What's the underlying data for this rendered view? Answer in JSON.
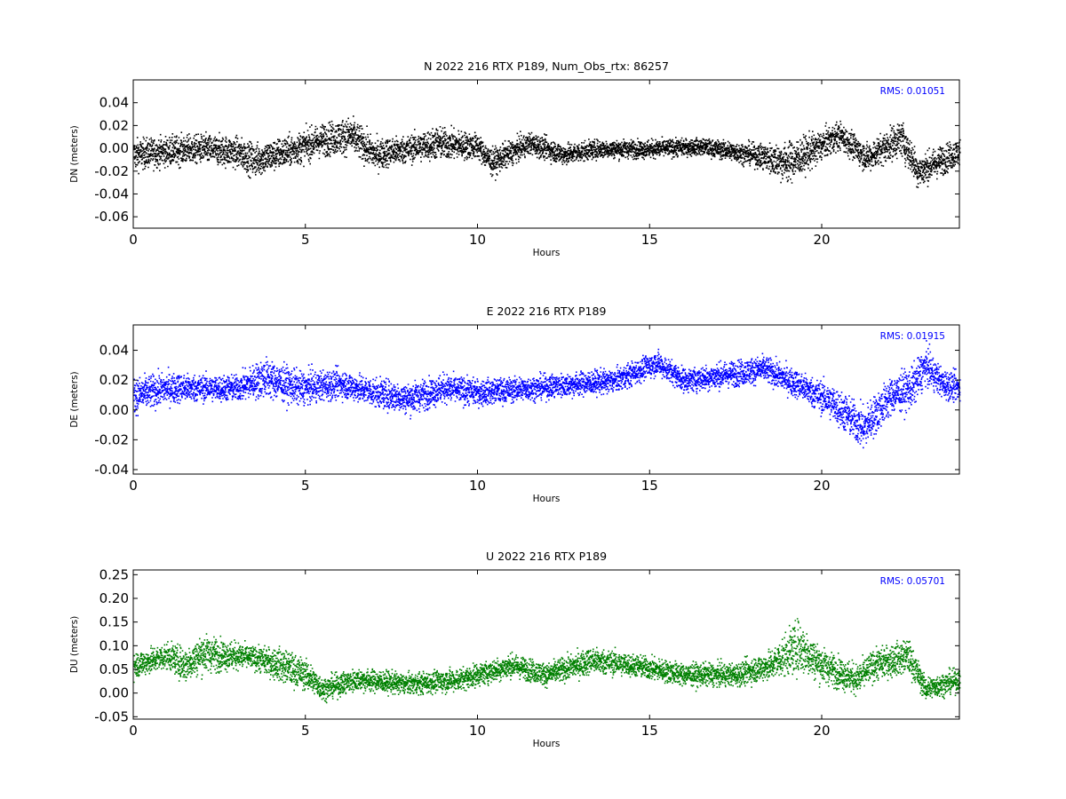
{
  "chart_data": [
    {
      "type": "scatter",
      "title": "N 2022 216 RTX  P189, Num_Obs_rtx: 86257",
      "xlabel": "Hours",
      "ylabel": "DN (meters)",
      "xlim": [
        0,
        24
      ],
      "ylim": [
        -0.07,
        0.06
      ],
      "xticks": [
        0,
        5,
        10,
        15,
        20
      ],
      "yticks": [
        -0.06,
        -0.04,
        -0.02,
        0.0,
        0.02,
        0.04
      ],
      "ytick_decimals": 2,
      "grid": false,
      "color": "#000000",
      "rms_label": "RMS:  0.01051",
      "rms_color": "#0000ff",
      "series": [
        {
          "band": [
            {
              "x": 0.0,
              "center": -0.005,
              "spread": 0.017
            },
            {
              "x": 1.0,
              "center": -0.002,
              "spread": 0.016
            },
            {
              "x": 2.0,
              "center": 0.0,
              "spread": 0.016
            },
            {
              "x": 3.0,
              "center": -0.003,
              "spread": 0.017
            },
            {
              "x": 3.5,
              "center": -0.01,
              "spread": 0.018
            },
            {
              "x": 4.5,
              "center": -0.002,
              "spread": 0.017
            },
            {
              "x": 5.5,
              "center": 0.008,
              "spread": 0.018
            },
            {
              "x": 6.3,
              "center": 0.012,
              "spread": 0.02
            },
            {
              "x": 7.0,
              "center": -0.005,
              "spread": 0.017
            },
            {
              "x": 8.0,
              "center": 0.0,
              "spread": 0.015
            },
            {
              "x": 8.8,
              "center": 0.005,
              "spread": 0.018
            },
            {
              "x": 10.0,
              "center": 0.002,
              "spread": 0.014
            },
            {
              "x": 10.4,
              "center": -0.012,
              "spread": 0.015
            },
            {
              "x": 11.5,
              "center": 0.005,
              "spread": 0.012
            },
            {
              "x": 12.5,
              "center": -0.005,
              "spread": 0.012
            },
            {
              "x": 13.5,
              "center": 0.0,
              "spread": 0.01
            },
            {
              "x": 15.0,
              "center": 0.0,
              "spread": 0.01
            },
            {
              "x": 16.5,
              "center": 0.002,
              "spread": 0.009
            },
            {
              "x": 18.0,
              "center": -0.005,
              "spread": 0.012
            },
            {
              "x": 19.0,
              "center": -0.012,
              "spread": 0.022
            },
            {
              "x": 19.5,
              "center": -0.005,
              "spread": 0.02
            },
            {
              "x": 20.5,
              "center": 0.012,
              "spread": 0.015
            },
            {
              "x": 21.3,
              "center": -0.008,
              "spread": 0.015
            },
            {
              "x": 22.3,
              "center": 0.01,
              "spread": 0.02
            },
            {
              "x": 22.8,
              "center": -0.02,
              "spread": 0.018
            },
            {
              "x": 24.0,
              "center": -0.002,
              "spread": 0.015
            }
          ]
        }
      ]
    },
    {
      "type": "scatter",
      "title": "E 2022 216 RTX  P189",
      "xlabel": "Hours",
      "ylabel": "DE (meters)",
      "xlim": [
        0,
        24
      ],
      "ylim": [
        -0.043,
        0.057
      ],
      "xticks": [
        0,
        5,
        10,
        15,
        20
      ],
      "yticks": [
        -0.04,
        -0.02,
        0.0,
        0.02,
        0.04
      ],
      "ytick_decimals": 2,
      "grid": false,
      "color": "#0000ff",
      "rms_label": "RMS:  0.01915",
      "rms_color": "#0000ff",
      "series": [
        {
          "band": [
            {
              "x": 0.0,
              "center": 0.01,
              "spread": 0.015
            },
            {
              "x": 1.0,
              "center": 0.015,
              "spread": 0.013
            },
            {
              "x": 2.0,
              "center": 0.015,
              "spread": 0.011
            },
            {
              "x": 3.0,
              "center": 0.015,
              "spread": 0.011
            },
            {
              "x": 3.8,
              "center": 0.022,
              "spread": 0.017
            },
            {
              "x": 4.8,
              "center": 0.015,
              "spread": 0.014
            },
            {
              "x": 6.0,
              "center": 0.018,
              "spread": 0.012
            },
            {
              "x": 7.0,
              "center": 0.012,
              "spread": 0.012
            },
            {
              "x": 8.0,
              "center": 0.008,
              "spread": 0.013
            },
            {
              "x": 9.0,
              "center": 0.015,
              "spread": 0.012
            },
            {
              "x": 10.0,
              "center": 0.012,
              "spread": 0.011
            },
            {
              "x": 11.5,
              "center": 0.015,
              "spread": 0.01
            },
            {
              "x": 13.0,
              "center": 0.018,
              "spread": 0.01
            },
            {
              "x": 14.0,
              "center": 0.02,
              "spread": 0.01
            },
            {
              "x": 15.2,
              "center": 0.032,
              "spread": 0.01
            },
            {
              "x": 16.0,
              "center": 0.02,
              "spread": 0.01
            },
            {
              "x": 17.5,
              "center": 0.025,
              "spread": 0.011
            },
            {
              "x": 18.3,
              "center": 0.028,
              "spread": 0.011
            },
            {
              "x": 19.5,
              "center": 0.015,
              "spread": 0.012
            },
            {
              "x": 20.3,
              "center": 0.005,
              "spread": 0.015
            },
            {
              "x": 21.2,
              "center": -0.012,
              "spread": 0.018
            },
            {
              "x": 22.0,
              "center": 0.01,
              "spread": 0.016
            },
            {
              "x": 22.6,
              "center": 0.015,
              "spread": 0.017
            },
            {
              "x": 23.0,
              "center": 0.03,
              "spread": 0.016
            },
            {
              "x": 23.5,
              "center": 0.018,
              "spread": 0.012
            },
            {
              "x": 24.0,
              "center": 0.015,
              "spread": 0.012
            }
          ]
        }
      ]
    },
    {
      "type": "scatter",
      "title": "U 2022 216 RTX  P189",
      "xlabel": "Hours",
      "ylabel": "DU (meters)",
      "xlim": [
        0,
        24
      ],
      "ylim": [
        -0.055,
        0.26
      ],
      "xticks": [
        0,
        5,
        10,
        15,
        20
      ],
      "yticks": [
        -0.05,
        0.0,
        0.05,
        0.1,
        0.15,
        0.2,
        0.25
      ],
      "ytick_decimals": 2,
      "grid": false,
      "color": "#008000",
      "rms_label": "RMS:  0.05701",
      "rms_color": "#0000ff",
      "series": [
        {
          "band": [
            {
              "x": 0.0,
              "center": 0.06,
              "spread": 0.035
            },
            {
              "x": 1.0,
              "center": 0.08,
              "spread": 0.035
            },
            {
              "x": 1.5,
              "center": 0.06,
              "spread": 0.045
            },
            {
              "x": 2.0,
              "center": 0.085,
              "spread": 0.05
            },
            {
              "x": 3.0,
              "center": 0.08,
              "spread": 0.035
            },
            {
              "x": 3.5,
              "center": 0.075,
              "spread": 0.03
            },
            {
              "x": 4.3,
              "center": 0.06,
              "spread": 0.045
            },
            {
              "x": 5.0,
              "center": 0.04,
              "spread": 0.04
            },
            {
              "x": 5.5,
              "center": 0.01,
              "spread": 0.03
            },
            {
              "x": 6.5,
              "center": 0.03,
              "spread": 0.03
            },
            {
              "x": 8.0,
              "center": 0.02,
              "spread": 0.028
            },
            {
              "x": 9.5,
              "center": 0.03,
              "spread": 0.03
            },
            {
              "x": 11.0,
              "center": 0.06,
              "spread": 0.03
            },
            {
              "x": 12.0,
              "center": 0.04,
              "spread": 0.03
            },
            {
              "x": 13.3,
              "center": 0.07,
              "spread": 0.035
            },
            {
              "x": 14.5,
              "center": 0.06,
              "spread": 0.03
            },
            {
              "x": 16.0,
              "center": 0.04,
              "spread": 0.03
            },
            {
              "x": 17.5,
              "center": 0.04,
              "spread": 0.03
            },
            {
              "x": 18.5,
              "center": 0.06,
              "spread": 0.04
            },
            {
              "x": 19.3,
              "center": 0.1,
              "spread": 0.07
            },
            {
              "x": 20.0,
              "center": 0.06,
              "spread": 0.045
            },
            {
              "x": 21.0,
              "center": 0.03,
              "spread": 0.04
            },
            {
              "x": 21.5,
              "center": 0.06,
              "spread": 0.04
            },
            {
              "x": 22.5,
              "center": 0.08,
              "spread": 0.045
            },
            {
              "x": 23.0,
              "center": 0.01,
              "spread": 0.03
            },
            {
              "x": 24.0,
              "center": 0.03,
              "spread": 0.03
            }
          ]
        }
      ]
    }
  ]
}
